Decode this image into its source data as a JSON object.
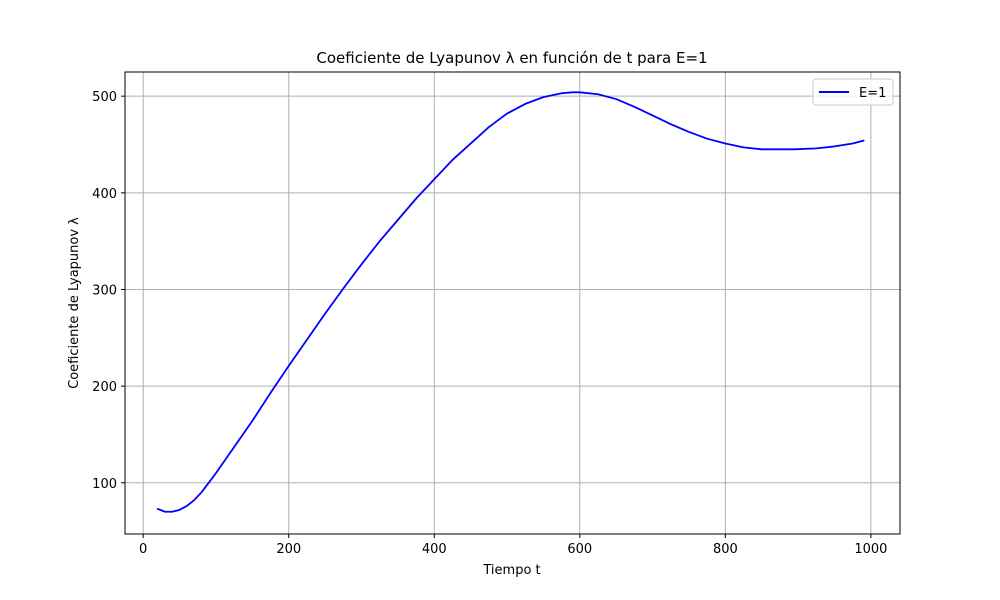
{
  "chart_data": {
    "type": "line",
    "title": "Coeficiente de Lyapunov λ en función de t para E=1",
    "xlabel": "Tiempo t",
    "ylabel": "Coeficiente de Lyapunov λ",
    "xlim": [
      -25,
      1040
    ],
    "ylim": [
      47,
      525
    ],
    "xticks": [
      0,
      200,
      400,
      600,
      800,
      1000
    ],
    "yticks": [
      100,
      200,
      300,
      400,
      500
    ],
    "grid": true,
    "legend_position": "top-right",
    "series": [
      {
        "name": "E=1",
        "color": "#0000ff",
        "x": [
          20,
          30,
          40,
          50,
          60,
          70,
          80,
          100,
          125,
          150,
          175,
          200,
          225,
          250,
          275,
          300,
          325,
          350,
          375,
          400,
          425,
          450,
          475,
          500,
          525,
          550,
          575,
          590,
          600,
          625,
          650,
          675,
          700,
          725,
          750,
          775,
          800,
          825,
          850,
          875,
          895,
          925,
          950,
          975,
          990
        ],
        "y": [
          73,
          70,
          70,
          72,
          76,
          82,
          90,
          110,
          137,
          164,
          193,
          221,
          248,
          275,
          301,
          326,
          350,
          372,
          394,
          414,
          434,
          451,
          468,
          482,
          492,
          499,
          503,
          504,
          504,
          502,
          497,
          489,
          480,
          471,
          463,
          456,
          451,
          447,
          445,
          445,
          445,
          446,
          448,
          451,
          454
        ]
      }
    ]
  }
}
